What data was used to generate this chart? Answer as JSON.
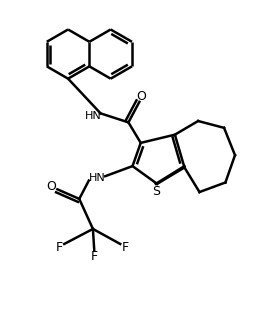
{
  "background_color": "#ffffff",
  "line_color": "#000000",
  "line_width": 1.8,
  "figure_size": [
    2.76,
    3.24
  ],
  "dpi": 100,
  "xlim": [
    0,
    10
  ],
  "ylim": [
    0,
    11.7
  ]
}
